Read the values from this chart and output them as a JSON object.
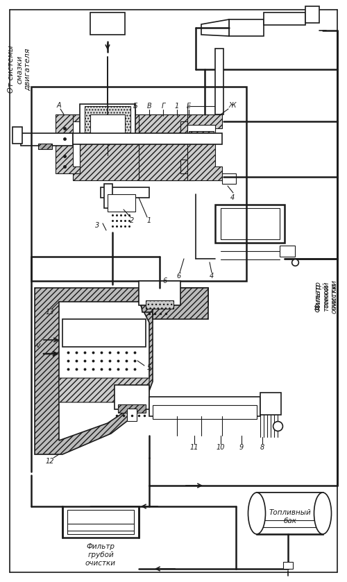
{
  "bg_color": "#ffffff",
  "line_color": "#1a1a1a",
  "figsize": [
    5.0,
    8.39
  ],
  "dpi": 100,
  "labels": {
    "top_left": "От системы\nсмазки\nдвигателя",
    "fine_filter": "Фильтр\nтонкой\nочистки",
    "fuel_tank": "Топливный\nбак",
    "coarse_filter": "Фильтр\nгрубой\nочистки"
  }
}
